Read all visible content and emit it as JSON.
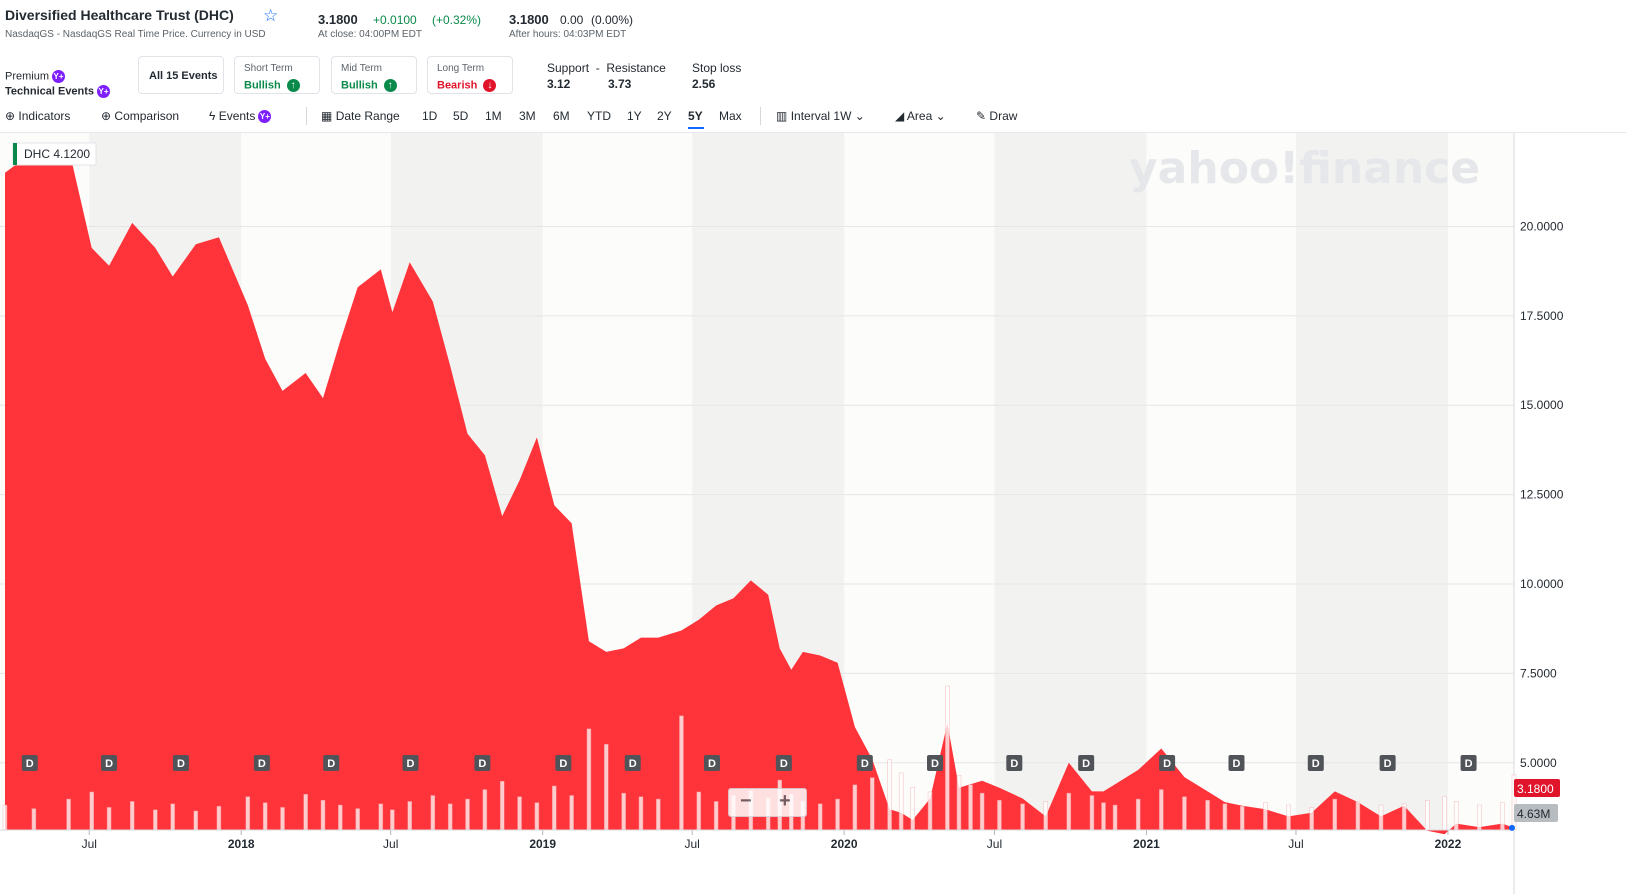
{
  "header": {
    "title": "Diversified Healthcare Trust (DHC)",
    "subtitle": "NasdaqGS - NasdaqGS Real Time Price. Currency in USD",
    "close_price": "3.1800",
    "close_change": "+0.0100",
    "close_change_pct": "(+0.32%)",
    "close_time": "At close: 04:00PM EDT",
    "after_price": "3.1800",
    "after_change": "0.00",
    "after_change_pct": "(0.00%)",
    "after_time": "After hours: 04:03PM EDT"
  },
  "events": {
    "premium_label": "Premium",
    "tech_label": "Technical Events",
    "badge": "Y+",
    "all_events": "All 15 Events",
    "short_label": "Short Term",
    "short_val": "Bullish",
    "mid_label": "Mid Term",
    "mid_val": "Bullish",
    "long_label": "Long Term",
    "long_val": "Bearish",
    "support_label": "Support",
    "dash": "-",
    "resistance_label": "Resistance",
    "support_val": "3.12",
    "resistance_val": "3.73",
    "stoploss_label": "Stop loss",
    "stoploss_val": "2.56"
  },
  "toolbar": {
    "indicators": "Indicators",
    "comparison": "Comparison",
    "events": "Events",
    "date_range": "Date Range",
    "ranges": [
      "1D",
      "5D",
      "1M",
      "3M",
      "6M",
      "YTD",
      "1Y",
      "2Y",
      "5Y",
      "Max"
    ],
    "selected_range": "5Y",
    "interval_label": "Interval",
    "interval_val": "1W",
    "chart_type": "Area",
    "draw": "Draw"
  },
  "colors": {
    "area": "#ff333a",
    "up": "#0a8a4a",
    "down": "#e0142b",
    "accent": "#0f69ff",
    "badge": "#7e1fff"
  },
  "chart_data": {
    "type": "area",
    "ticker_label": "DHC",
    "ticker_value": "4.1200",
    "watermark": "yahoo!finance",
    "x_tick_labels": [
      "Jul",
      "2018",
      "Jul",
      "2019",
      "Jul",
      "2020",
      "Jul",
      "2021",
      "Jul",
      "2022"
    ],
    "y_tick_labels": [
      "20.0000",
      "17.5000",
      "15.0000",
      "12.5000",
      "10.0000",
      "7.5000",
      "5.0000"
    ],
    "y_ticks": [
      20,
      17.5,
      15,
      12.5,
      10,
      7.5,
      5
    ],
    "ylim": [
      3.12,
      22.25
    ],
    "last_price_label": "3.1800",
    "last_volume_label": "4.63M",
    "dividend_marker": "D",
    "x": [
      "2017-03-21",
      "2017-04-25",
      "2017-06-06",
      "2017-07-04",
      "2017-07-25",
      "2017-08-22",
      "2017-09-19",
      "2017-10-10",
      "2017-11-07",
      "2017-12-05",
      "2018-01-09",
      "2018-01-30",
      "2018-02-20",
      "2018-03-20",
      "2018-04-10",
      "2018-05-01",
      "2018-05-22",
      "2018-06-19",
      "2018-07-03",
      "2018-07-24",
      "2018-08-21",
      "2018-09-11",
      "2018-10-02",
      "2018-10-23",
      "2018-11-13",
      "2018-12-04",
      "2018-12-25",
      "2019-01-15",
      "2019-02-05",
      "2019-02-26",
      "2019-03-19",
      "2019-04-09",
      "2019-04-30",
      "2019-05-21",
      "2019-06-18",
      "2019-07-09",
      "2019-07-30",
      "2019-08-20",
      "2019-09-10",
      "2019-10-01",
      "2019-10-15",
      "2019-10-29",
      "2019-11-12",
      "2019-12-03",
      "2019-12-24",
      "2020-01-14",
      "2020-02-04",
      "2020-02-25",
      "2020-03-10",
      "2020-03-24",
      "2020-04-14",
      "2020-05-05",
      "2020-05-19",
      "2020-06-02",
      "2020-06-16",
      "2020-07-07",
      "2020-08-04",
      "2020-09-01",
      "2020-09-29",
      "2020-10-27",
      "2020-11-10",
      "2020-11-24",
      "2020-12-22",
      "2021-01-19",
      "2021-02-16",
      "2021-03-16",
      "2021-04-06",
      "2021-04-27",
      "2021-05-25",
      "2021-06-22",
      "2021-07-20",
      "2021-08-17",
      "2021-09-14",
      "2021-10-12",
      "2021-11-09",
      "2021-12-07",
      "2021-12-28",
      "2022-01-11",
      "2022-02-08",
      "2022-03-08",
      "2022-03-22"
    ],
    "y": [
      21.5,
      22.1,
      22.2,
      19.4,
      18.9,
      20.1,
      19.4,
      18.6,
      19.5,
      19.7,
      17.8,
      16.3,
      15.4,
      15.9,
      15.2,
      16.8,
      18.3,
      18.8,
      17.6,
      19.0,
      17.9,
      16.1,
      14.2,
      13.6,
      11.9,
      12.9,
      14.1,
      12.2,
      11.7,
      8.4,
      8.1,
      8.2,
      8.5,
      8.5,
      8.7,
      9.0,
      9.4,
      9.6,
      10.1,
      9.7,
      8.2,
      7.6,
      8.1,
      8.0,
      7.8,
      6.0,
      5.1,
      3.7,
      3.6,
      3.4,
      4.0,
      6.1,
      4.3,
      4.4,
      4.5,
      4.3,
      4.0,
      3.5,
      5.0,
      4.2,
      4.2,
      4.4,
      4.8,
      5.4,
      4.6,
      4.2,
      3.9,
      3.8,
      3.7,
      3.5,
      3.6,
      4.2,
      3.9,
      3.5,
      3.8,
      3.1,
      3.0,
      3.3,
      3.2,
      3.3,
      3.18
    ],
    "dividends": [
      "2017-04-20",
      "2017-07-25",
      "2017-10-20",
      "2018-01-26",
      "2018-04-20",
      "2018-07-25",
      "2018-10-20",
      "2019-01-26",
      "2019-04-20",
      "2019-07-25",
      "2019-10-20",
      "2020-01-26",
      "2020-04-20",
      "2020-07-25",
      "2020-10-20",
      "2021-01-26",
      "2021-04-20",
      "2021-07-25",
      "2021-10-20",
      "2022-01-26"
    ],
    "volume_m": [
      2.1,
      1.8,
      2.6,
      3.2,
      1.9,
      2.4,
      1.7,
      2.2,
      1.6,
      2.0,
      2.8,
      2.3,
      1.9,
      3.0,
      2.5,
      2.1,
      1.8,
      2.2,
      1.7,
      2.4,
      2.9,
      2.2,
      2.6,
      3.4,
      4.1,
      2.8,
      2.3,
      3.7,
      2.9,
      8.5,
      7.2,
      3.1,
      2.8,
      2.6,
      9.6,
      3.2,
      2.4,
      2.9,
      3.3,
      2.7,
      4.2,
      3.0,
      2.4,
      2.2,
      2.6,
      3.8,
      4.4,
      5.9,
      4.8,
      3.6,
      3.2,
      12.1,
      4.6,
      3.8,
      3.1,
      2.5,
      2.2,
      2.4,
      3.1,
      2.9,
      2.3,
      2.1,
      2.6,
      3.4,
      2.8,
      2.5,
      2.2,
      2.0,
      2.3,
      2.1,
      1.9,
      2.6,
      2.4,
      2.1,
      2.2,
      2.5,
      2.8,
      2.4,
      2.1,
      2.3,
      4.63
    ]
  }
}
